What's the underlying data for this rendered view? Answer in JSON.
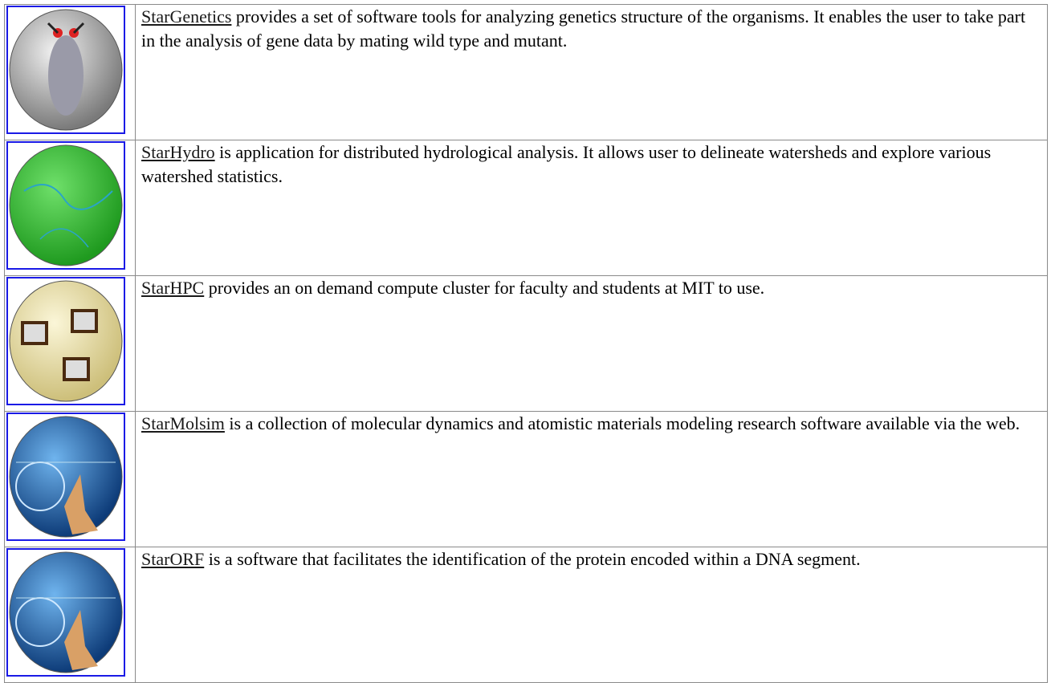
{
  "table": {
    "rows": [
      {
        "name": "StarGenetics",
        "text": "provides a set of software tools for analyzing genetics structure of the organisms. It enables the user to take part in the analysis of gene data by mating wild type and mutant."
      },
      {
        "name": "StarHydro",
        "text": "is application for distributed hydrological analysis. It allows user to delineate watersheds and explore various watershed statistics."
      },
      {
        "name": "StarHPC",
        "text": "provides an on demand compute cluster for faculty and students at MIT to use."
      },
      {
        "name": "StarMolsim",
        "text": "is a collection of molecular dynamics and atomistic materials modeling research software available via the web."
      },
      {
        "name": "StarORF",
        "text": "is a software that facilitates the identification of the protein encoded within a DNA segment."
      }
    ]
  }
}
